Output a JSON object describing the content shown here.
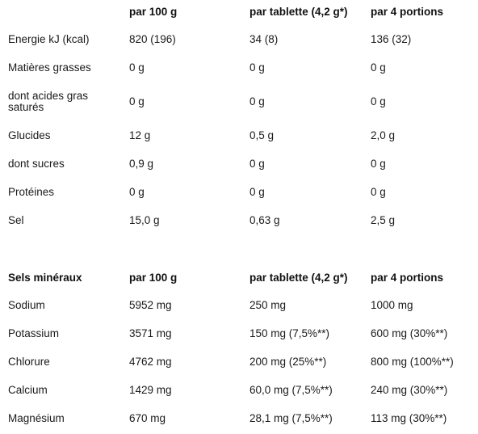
{
  "nutrition": {
    "headers": [
      "",
      "par 100 g",
      "par tablette (4,2 g*)",
      "par 4 portions"
    ],
    "rows": [
      [
        "Energie kJ (kcal)",
        "820 (196)",
        "34 (8)",
        "136 (32)"
      ],
      [
        "Matières grasses",
        "0 g",
        "0 g",
        "0 g"
      ],
      [
        "dont acides gras saturés",
        "0 g",
        "0 g",
        "0 g"
      ],
      [
        "Glucides",
        "12 g",
        "0,5 g",
        "2,0 g"
      ],
      [
        "dont sucres",
        "0,9 g",
        "0 g",
        "0 g"
      ],
      [
        "Protéines",
        "0 g",
        "0 g",
        "0 g"
      ],
      [
        "Sel",
        "15,0 g",
        "0,63 g",
        "2,5 g"
      ]
    ]
  },
  "minerals": {
    "headers": [
      "Sels minéraux",
      "par 100 g",
      "par tablette (4,2 g*)",
      "par 4 portions"
    ],
    "rows": [
      [
        "Sodium",
        "5952 mg",
        "250 mg",
        "1000 mg"
      ],
      [
        "Potassium",
        "3571 mg",
        "150 mg (7,5%**)",
        "600 mg (30%**)"
      ],
      [
        "Chlorure",
        "4762 mg",
        "200 mg (25%**)",
        "800 mg (100%**)"
      ],
      [
        "Calcium",
        "1429 mg",
        "60,0 mg (7,5%**)",
        "240 mg (30%**)"
      ],
      [
        "Magnésium",
        "670 mg",
        "28,1 mg (7,5%**)",
        "113 mg (30%**)"
      ]
    ]
  }
}
